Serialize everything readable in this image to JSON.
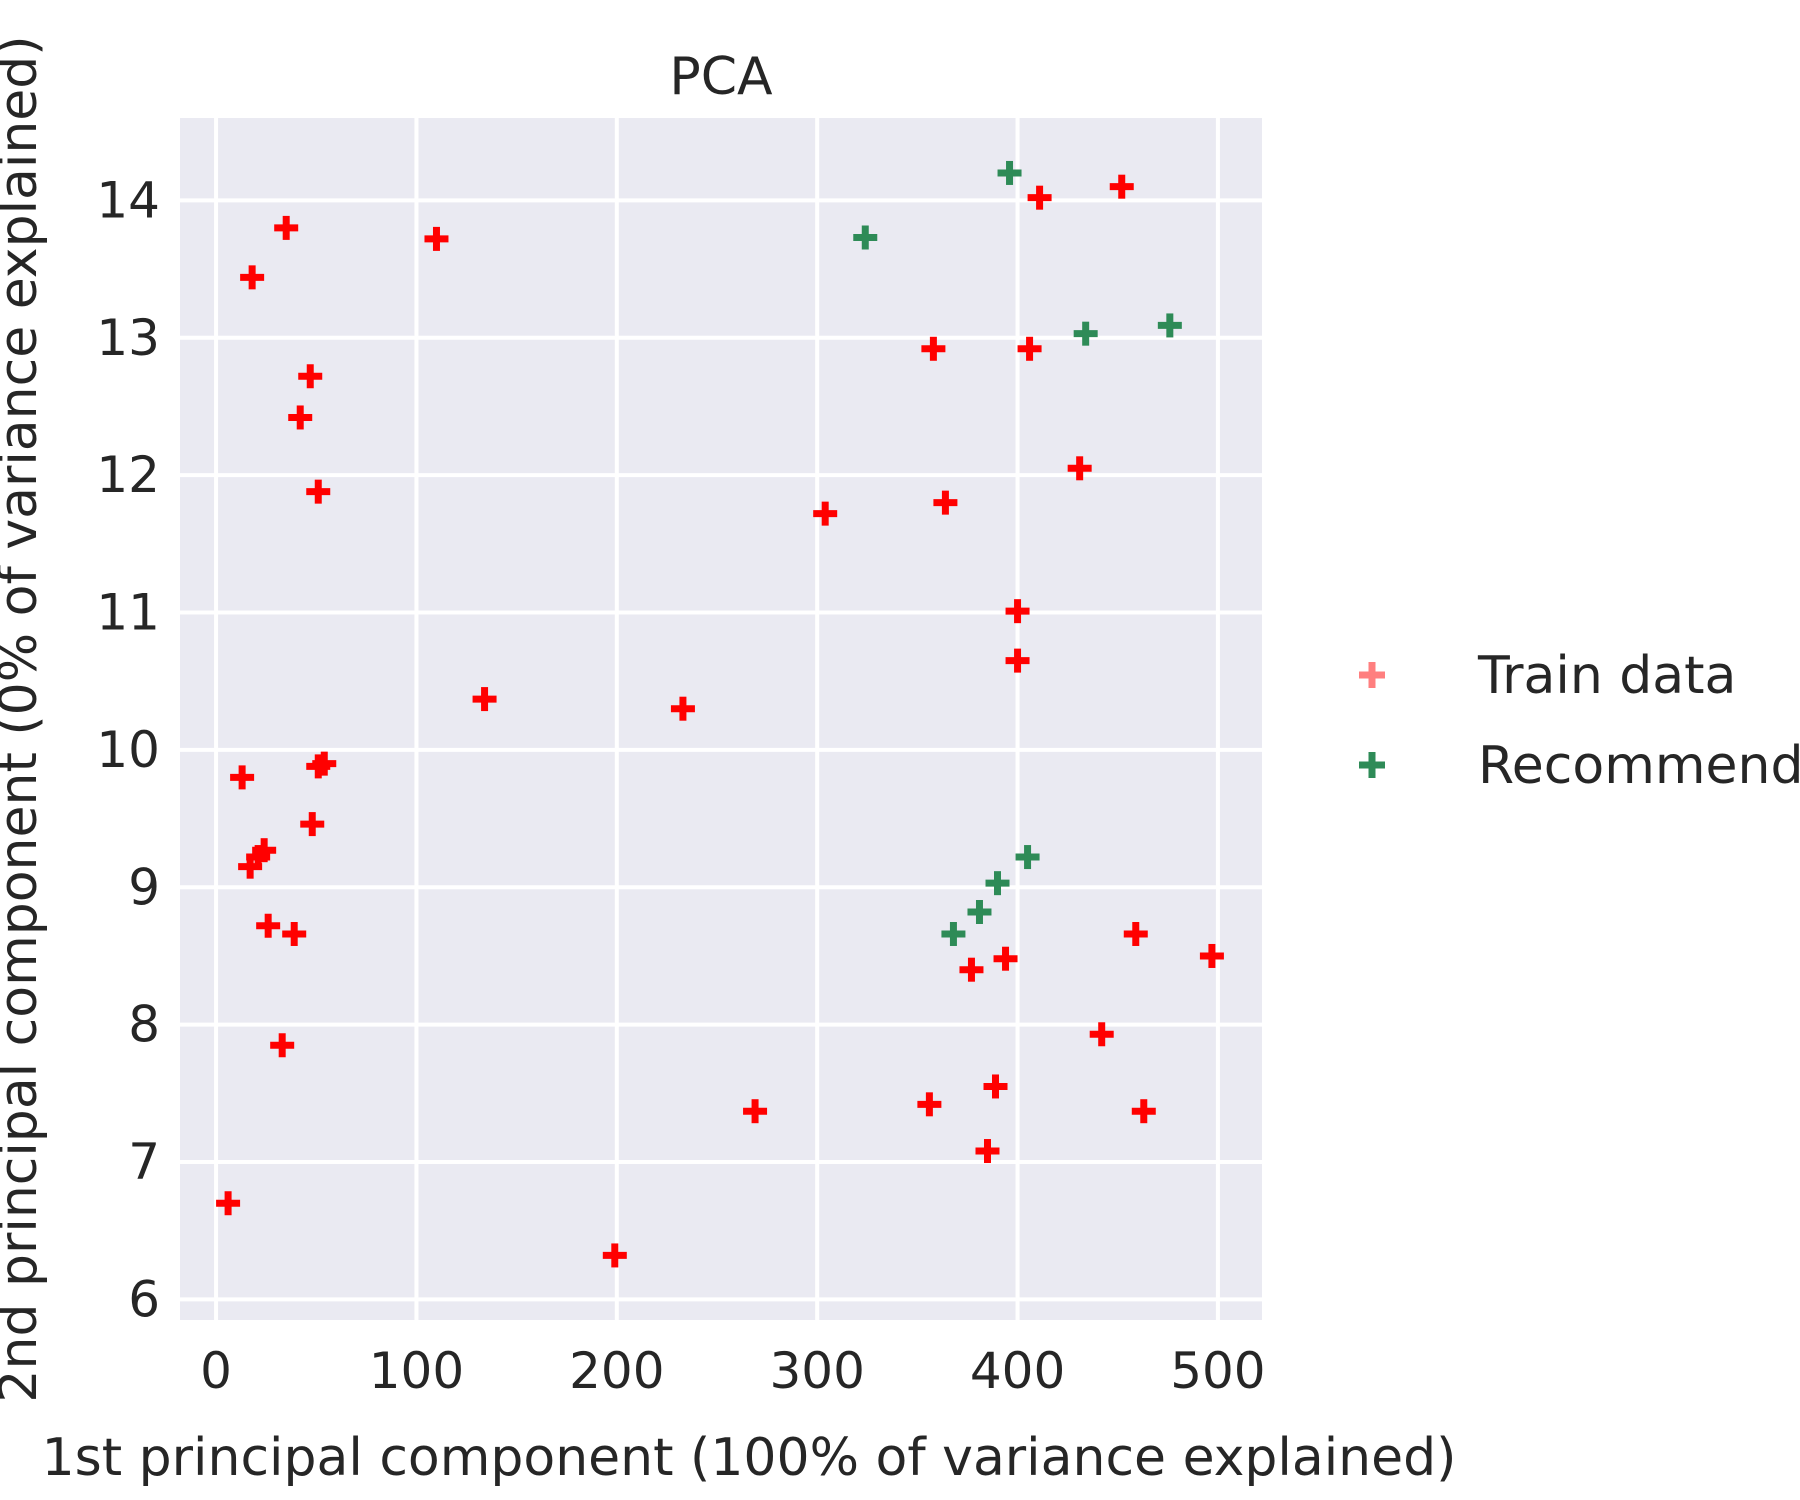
{
  "chart_data": {
    "type": "scatter",
    "title": "PCA",
    "xlabel": "1st principal component (100% of variance explained)",
    "ylabel": "2nd principal component (0% of variance explained)",
    "xlim": [
      -18,
      522
    ],
    "ylim": [
      5.85,
      14.6
    ],
    "xticks": [
      0,
      100,
      200,
      300,
      400,
      500
    ],
    "yticks": [
      6,
      7,
      8,
      9,
      10,
      11,
      12,
      13,
      14
    ],
    "grid": true,
    "background": "#eaeaf2",
    "legend_position": "right",
    "series": [
      {
        "name": "Train data",
        "color": "#ff0000",
        "legend_color": "#ff7f7f",
        "marker": "plus",
        "points": [
          [
            35,
            13.8
          ],
          [
            18,
            13.44
          ],
          [
            110,
            13.72
          ],
          [
            47,
            12.72
          ],
          [
            42,
            12.42
          ],
          [
            51,
            11.88
          ],
          [
            13,
            9.8
          ],
          [
            51,
            9.88
          ],
          [
            54,
            9.9
          ],
          [
            48,
            9.46
          ],
          [
            17,
            9.15
          ],
          [
            21,
            9.22
          ],
          [
            24,
            9.27
          ],
          [
            26,
            8.72
          ],
          [
            39,
            8.66
          ],
          [
            33,
            7.85
          ],
          [
            6,
            6.7
          ],
          [
            134,
            10.37
          ],
          [
            233,
            10.3
          ],
          [
            199,
            6.32
          ],
          [
            269,
            7.37
          ],
          [
            304,
            11.72
          ],
          [
            358,
            12.92
          ],
          [
            364,
            11.8
          ],
          [
            406,
            12.92
          ],
          [
            411,
            14.02
          ],
          [
            452,
            14.1
          ],
          [
            431,
            12.05
          ],
          [
            400,
            11.01
          ],
          [
            400,
            10.65
          ],
          [
            377,
            8.4
          ],
          [
            394,
            8.48
          ],
          [
            459,
            8.66
          ],
          [
            497,
            8.5
          ],
          [
            442,
            7.93
          ],
          [
            389,
            7.55
          ],
          [
            356,
            7.42
          ],
          [
            463,
            7.37
          ],
          [
            385,
            7.08
          ]
        ]
      },
      {
        "name": "Recommendations",
        "color": "#2e8b57",
        "legend_color": "#2e8b57",
        "marker": "plus",
        "points": [
          [
            396,
            14.2
          ],
          [
            324,
            13.73
          ],
          [
            434,
            13.03
          ],
          [
            476,
            13.09
          ],
          [
            405,
            9.22
          ],
          [
            390,
            9.03
          ],
          [
            381,
            8.82
          ],
          [
            368,
            8.66
          ]
        ]
      }
    ]
  }
}
